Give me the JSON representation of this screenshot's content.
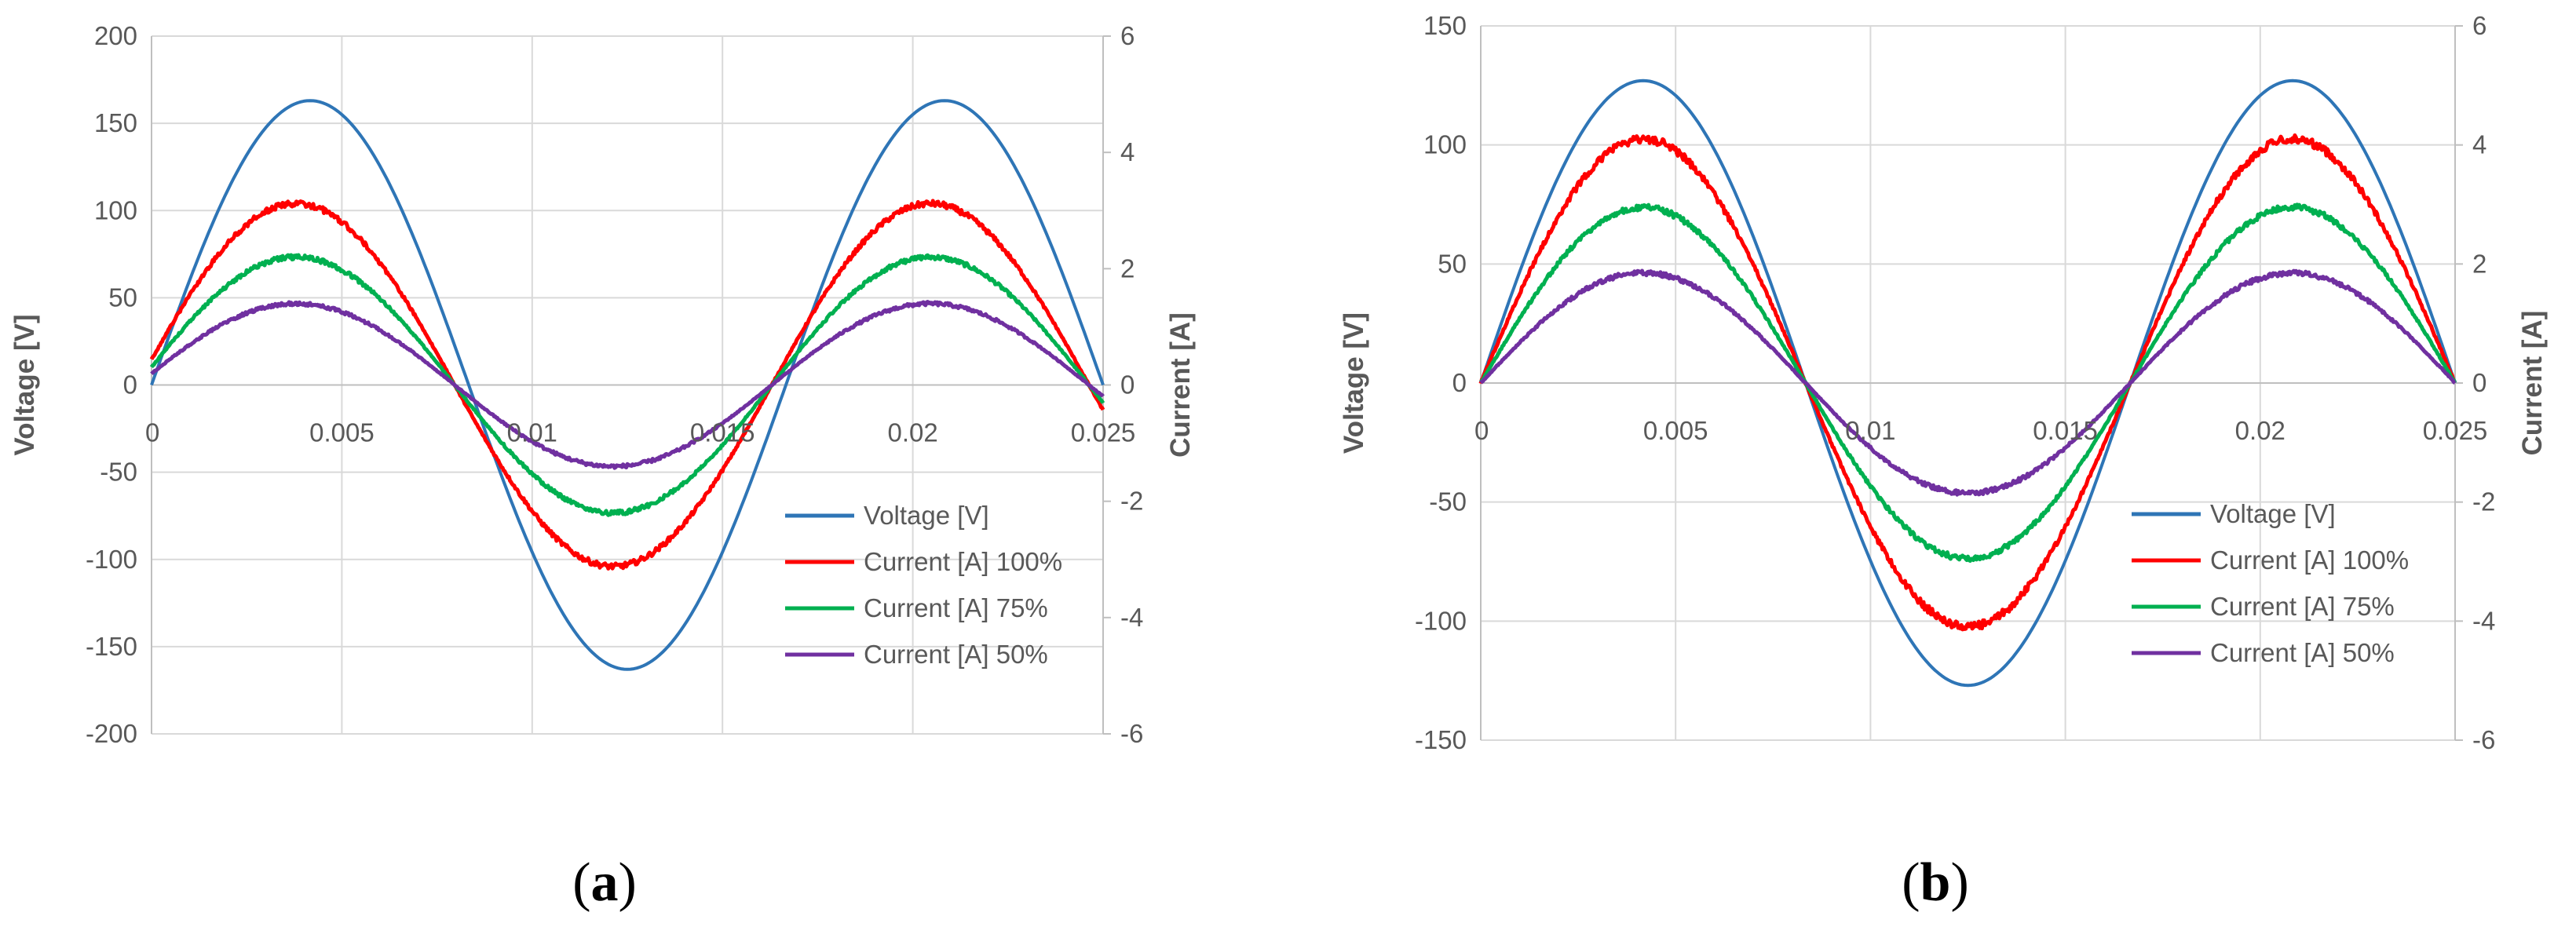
{
  "chart_data": [
    {
      "type": "line",
      "caption": "a",
      "title": "",
      "xlabel": "",
      "ylabel": "Voltage [V]",
      "y2label": "Current [A]",
      "xlim": [
        0,
        0.025
      ],
      "ylim": [
        -200,
        200
      ],
      "y2lim": [
        -6,
        6
      ],
      "x_ticks": [
        "0",
        "0.005",
        "0.01",
        "0.015",
        "0.02",
        "0.025"
      ],
      "y_ticks": [
        "200",
        "150",
        "100",
        "50",
        "0",
        "-50",
        "-100",
        "-150",
        "-200"
      ],
      "y2_ticks": [
        "6",
        "4",
        "2",
        "0",
        "-2",
        "-4",
        "-6"
      ],
      "frequency_hz": 60,
      "grid": true,
      "legend_position": "bottom-right",
      "series": [
        {
          "name": "Voltage [V]",
          "axis": "left",
          "color": "#2E75B6",
          "amplitude": 163,
          "phase_deg": 0,
          "noise": 0
        },
        {
          "name": "Current [A] 100%",
          "axis": "right",
          "color": "#FF0000",
          "amplitude": 3.12,
          "phase_deg": 8,
          "noise": 0.05
        },
        {
          "name": "Current [A] 75%",
          "axis": "right",
          "color": "#00B050",
          "amplitude": 2.2,
          "phase_deg": 8,
          "noise": 0.04
        },
        {
          "name": "Current [A] 50%",
          "axis": "right",
          "color": "#7030A0",
          "amplitude": 1.4,
          "phase_deg": 8,
          "noise": 0.03
        }
      ]
    },
    {
      "type": "line",
      "caption": "b",
      "title": "",
      "xlabel": "",
      "ylabel": "Voltage [V]",
      "y2label": "Current [A]",
      "xlim": [
        0,
        0.025
      ],
      "ylim": [
        -150,
        150
      ],
      "y2lim": [
        -6,
        6
      ],
      "x_ticks": [
        "0",
        "0.005",
        "0.01",
        "0.015",
        "0.02",
        "0.025"
      ],
      "y_ticks": [
        "150",
        "100",
        "50",
        "0",
        "-50",
        "-100",
        "-150"
      ],
      "y2_ticks": [
        "6",
        "4",
        "2",
        "0",
        "-2",
        "-4",
        "-6"
      ],
      "frequency_hz": 60,
      "grid": true,
      "legend_position": "bottom-right",
      "series": [
        {
          "name": "Voltage [V]",
          "axis": "left",
          "color": "#2E75B6",
          "amplitude": 127,
          "phase_deg": 0,
          "noise": 0
        },
        {
          "name": "Current [A] 100%",
          "axis": "right",
          "color": "#FF0000",
          "amplitude": 4.1,
          "phase_deg": 0,
          "noise": 0.07
        },
        {
          "name": "Current [A] 75%",
          "axis": "right",
          "color": "#00B050",
          "amplitude": 2.95,
          "phase_deg": 0,
          "noise": 0.05
        },
        {
          "name": "Current [A] 50%",
          "axis": "right",
          "color": "#7030A0",
          "amplitude": 1.85,
          "phase_deg": 0,
          "noise": 0.04
        }
      ]
    }
  ]
}
